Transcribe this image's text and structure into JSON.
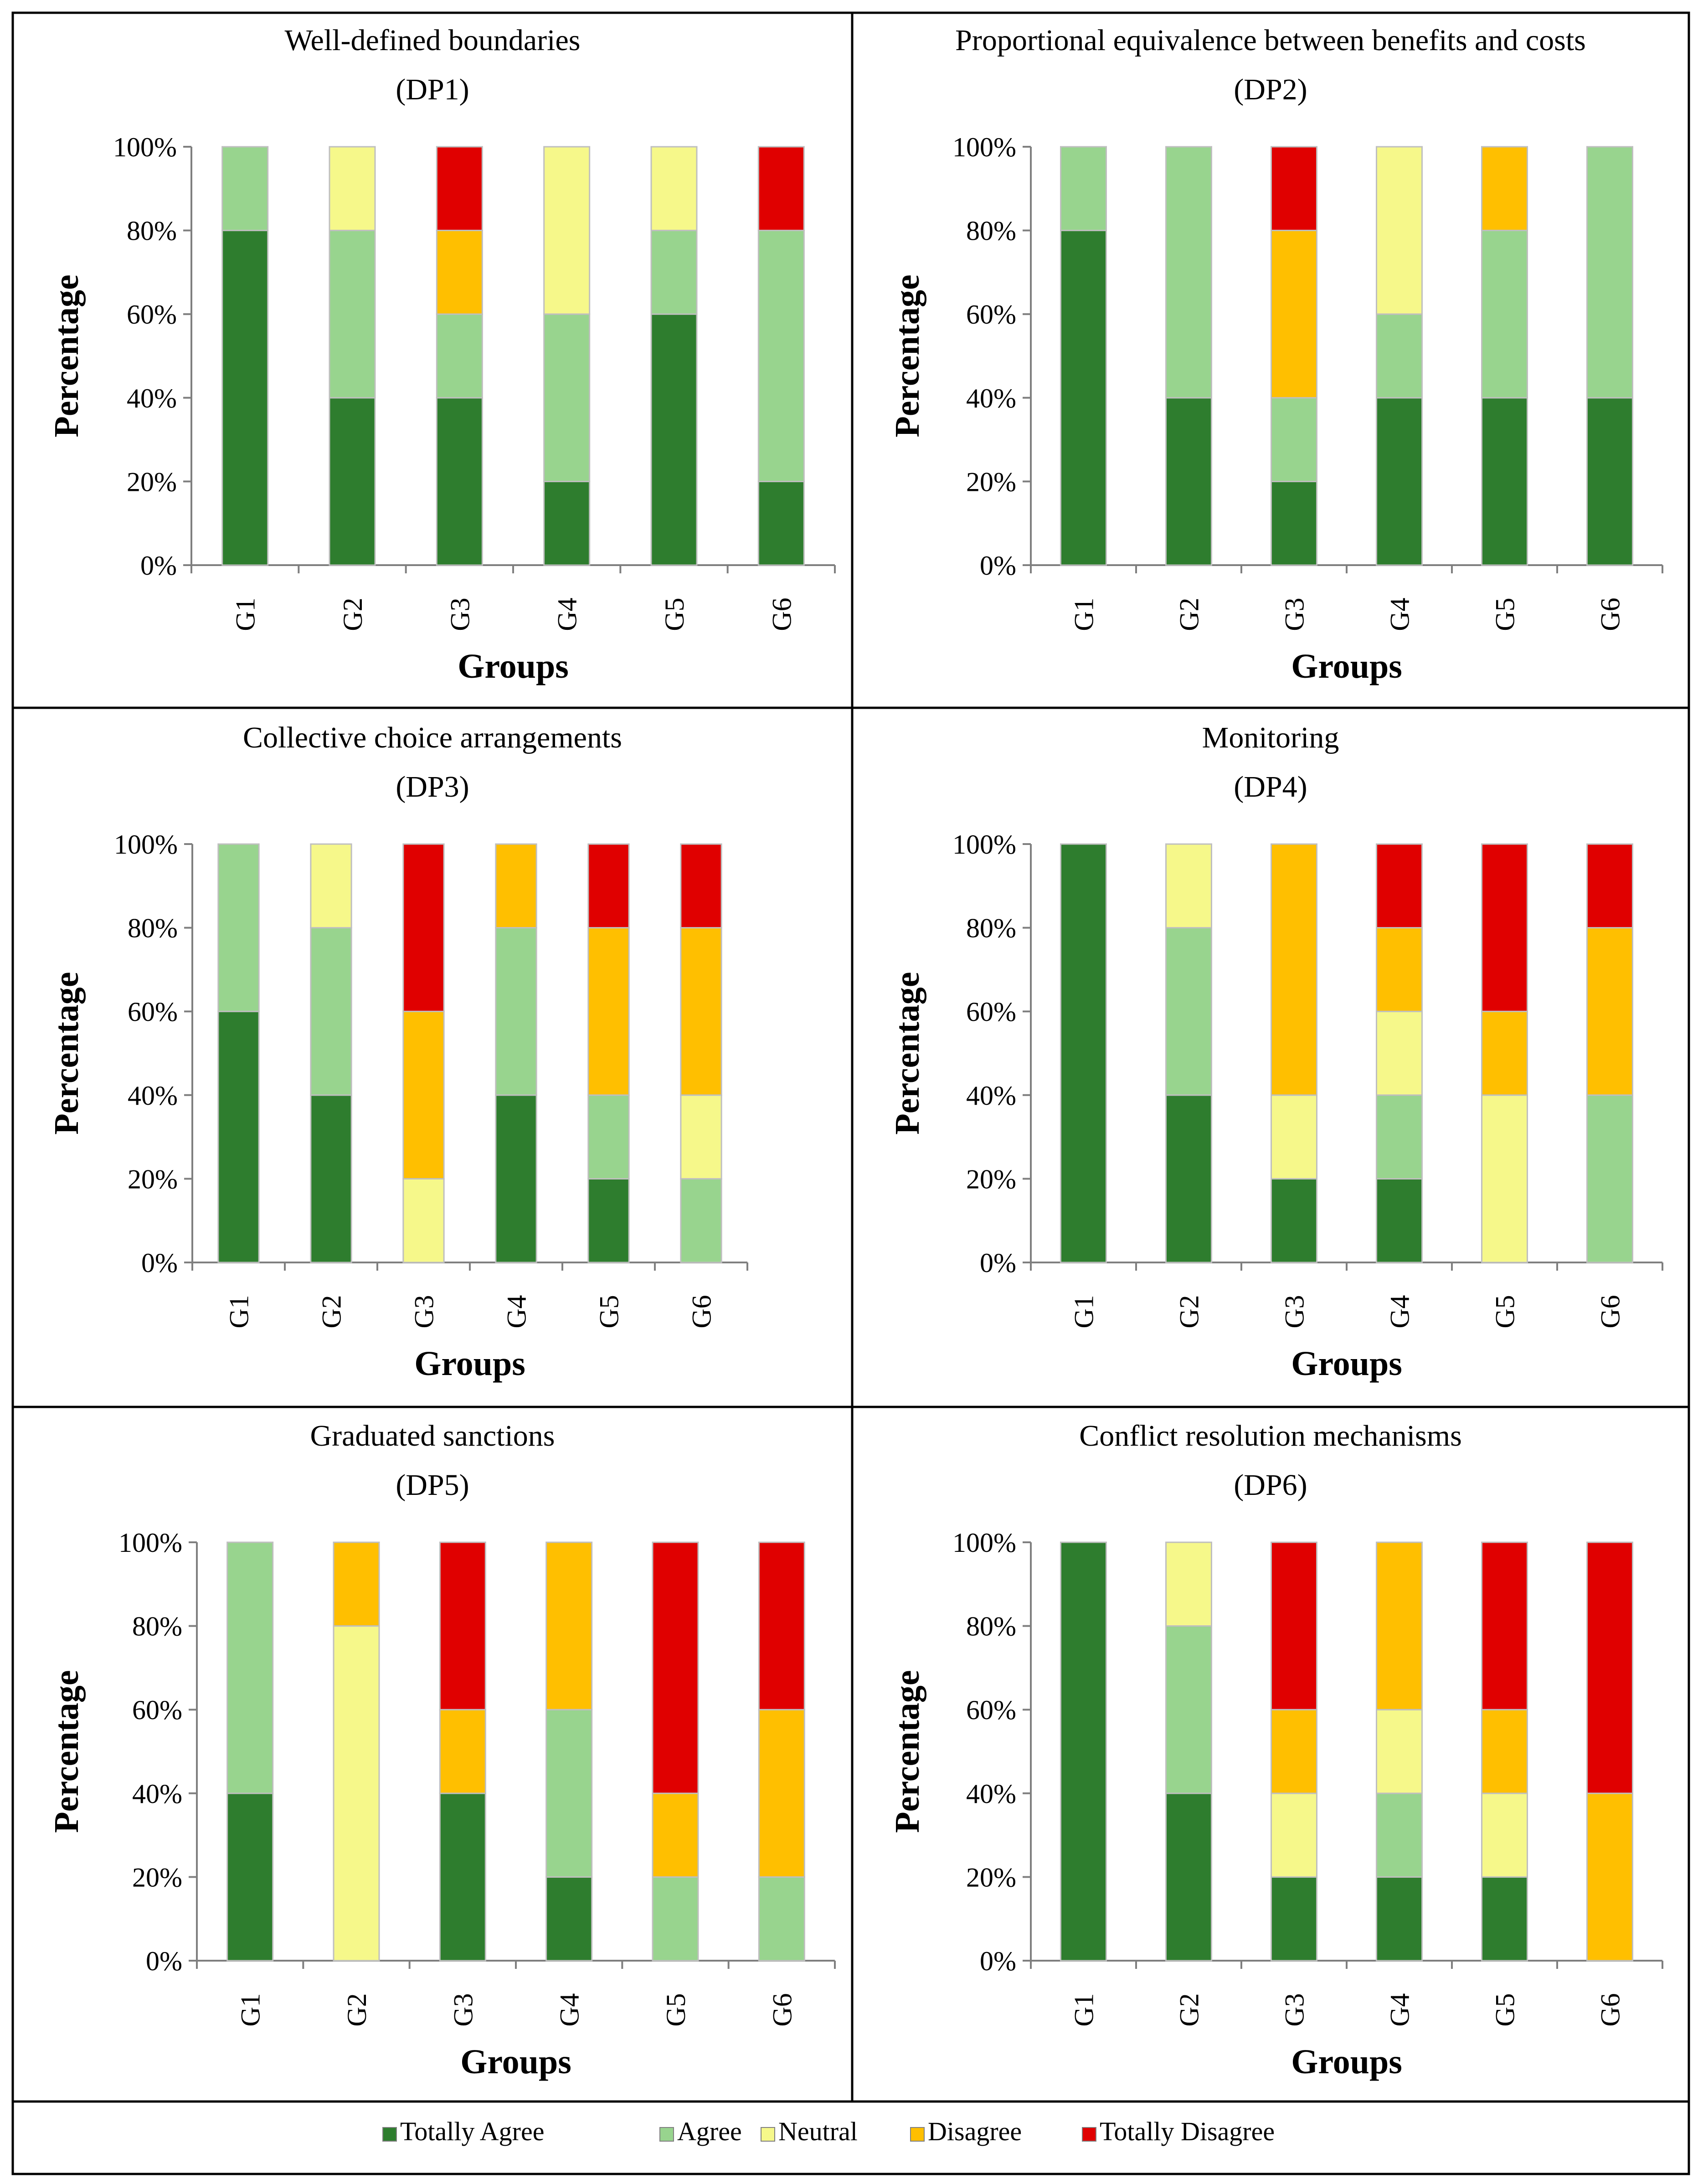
{
  "colors": {
    "Totally Agree": "#2e7d2e",
    "Agree": "#98d48e",
    "Neutral": "#f6f88a",
    "Disagree": "#ffbf00",
    "Totally Disagree": "#e00000"
  },
  "legend": [
    "Totally Agree",
    "Agree",
    "Neutral",
    "Disagree",
    "Totally Disagree"
  ],
  "chart_data": [
    {
      "type": "stacked-bar",
      "title": "Well-defined boundaries",
      "subtitle": "(DP1)",
      "xlabel": "Groups",
      "ylabel": "Percentage",
      "ylim": [
        0,
        100
      ],
      "yticks": [
        "0%",
        "20%",
        "40%",
        "60%",
        "80%",
        "100%"
      ],
      "categories": [
        "G1",
        "G2",
        "G3",
        "G4",
        "G5",
        "G6"
      ],
      "series": [
        {
          "name": "Totally Agree",
          "values": [
            80,
            40,
            40,
            20,
            60,
            20
          ]
        },
        {
          "name": "Agree",
          "values": [
            20,
            40,
            20,
            40,
            20,
            60
          ]
        },
        {
          "name": "Neutral",
          "values": [
            0,
            20,
            0,
            40,
            20,
            0
          ]
        },
        {
          "name": "Disagree",
          "values": [
            0,
            0,
            20,
            0,
            0,
            0
          ]
        },
        {
          "name": "Totally Disagree",
          "values": [
            0,
            0,
            20,
            0,
            0,
            20
          ]
        }
      ]
    },
    {
      "type": "stacked-bar",
      "title": "Proportional equivalence between benefits and costs",
      "subtitle": "(DP2)",
      "xlabel": "Groups",
      "ylabel": "Percentage",
      "ylim": [
        0,
        100
      ],
      "yticks": [
        "0%",
        "20%",
        "40%",
        "60%",
        "80%",
        "100%"
      ],
      "categories": [
        "G1",
        "G2",
        "G3",
        "G4",
        "G5",
        "G6"
      ],
      "series": [
        {
          "name": "Totally Agree",
          "values": [
            80,
            40,
            20,
            40,
            40,
            40
          ]
        },
        {
          "name": "Agree",
          "values": [
            20,
            60,
            20,
            20,
            40,
            60
          ]
        },
        {
          "name": "Neutral",
          "values": [
            0,
            0,
            0,
            40,
            0,
            0
          ]
        },
        {
          "name": "Disagree",
          "values": [
            0,
            0,
            40,
            0,
            20,
            0
          ]
        },
        {
          "name": "Totally Disagree",
          "values": [
            0,
            0,
            20,
            0,
            0,
            0
          ]
        }
      ]
    },
    {
      "type": "stacked-bar",
      "title": "Collective choice arrangements",
      "subtitle": "(DP3)",
      "xlabel": "Groups",
      "ylabel": "Percentage",
      "ylim": [
        0,
        100
      ],
      "yticks": [
        "0%",
        "20%",
        "40%",
        "60%",
        "80%",
        "100%"
      ],
      "categories": [
        "G1",
        "G2",
        "G3",
        "G4",
        "G5",
        "G6"
      ],
      "series": [
        {
          "name": "Totally Agree",
          "values": [
            60,
            40,
            0,
            40,
            20,
            0
          ]
        },
        {
          "name": "Agree",
          "values": [
            40,
            40,
            0,
            40,
            20,
            20
          ]
        },
        {
          "name": "Neutral",
          "values": [
            0,
            20,
            20,
            0,
            0,
            20
          ]
        },
        {
          "name": "Disagree",
          "values": [
            0,
            0,
            40,
            20,
            40,
            40
          ]
        },
        {
          "name": "Totally Disagree",
          "values": [
            0,
            0,
            40,
            0,
            20,
            20
          ]
        }
      ]
    },
    {
      "type": "stacked-bar",
      "title": "Monitoring",
      "subtitle": "(DP4)",
      "xlabel": "Groups",
      "ylabel": "Percentage",
      "ylim": [
        0,
        100
      ],
      "yticks": [
        "0%",
        "20%",
        "40%",
        "60%",
        "80%",
        "100%"
      ],
      "categories": [
        "G1",
        "G2",
        "G3",
        "G4",
        "G5",
        "G6"
      ],
      "series": [
        {
          "name": "Totally Agree",
          "values": [
            100,
            40,
            20,
            20,
            0,
            0
          ]
        },
        {
          "name": "Agree",
          "values": [
            0,
            40,
            0,
            20,
            0,
            40
          ]
        },
        {
          "name": "Neutral",
          "values": [
            0,
            20,
            20,
            20,
            40,
            0
          ]
        },
        {
          "name": "Disagree",
          "values": [
            0,
            0,
            60,
            20,
            20,
            40
          ]
        },
        {
          "name": "Totally Disagree",
          "values": [
            0,
            0,
            0,
            20,
            40,
            20
          ]
        }
      ]
    },
    {
      "type": "stacked-bar",
      "title": "Graduated sanctions",
      "subtitle": "(DP5)",
      "xlabel": "Groups",
      "ylabel": "Percentage",
      "ylim": [
        0,
        100
      ],
      "yticks": [
        "0%",
        "20%",
        "40%",
        "60%",
        "80%",
        "100%"
      ],
      "categories": [
        "G1",
        "G2",
        "G3",
        "G4",
        "G5",
        "G6"
      ],
      "series": [
        {
          "name": "Totally Agree",
          "values": [
            40,
            0,
            40,
            20,
            0,
            0
          ]
        },
        {
          "name": "Agree",
          "values": [
            60,
            0,
            0,
            40,
            20,
            20
          ]
        },
        {
          "name": "Neutral",
          "values": [
            0,
            80,
            0,
            0,
            0,
            0
          ]
        },
        {
          "name": "Disagree",
          "values": [
            0,
            20,
            20,
            40,
            20,
            40
          ]
        },
        {
          "name": "Totally Disagree",
          "values": [
            0,
            0,
            40,
            0,
            60,
            40
          ]
        }
      ]
    },
    {
      "type": "stacked-bar",
      "title": "Conflict resolution mechanisms",
      "subtitle": "(DP6)",
      "xlabel": "Groups",
      "ylabel": "Percentage",
      "ylim": [
        0,
        100
      ],
      "yticks": [
        "0%",
        "20%",
        "40%",
        "60%",
        "80%",
        "100%"
      ],
      "categories": [
        "G1",
        "G2",
        "G3",
        "G4",
        "G5",
        "G6"
      ],
      "series": [
        {
          "name": "Totally Agree",
          "values": [
            100,
            40,
            20,
            20,
            20,
            0
          ]
        },
        {
          "name": "Agree",
          "values": [
            0,
            40,
            0,
            20,
            0,
            0
          ]
        },
        {
          "name": "Neutral",
          "values": [
            0,
            20,
            20,
            20,
            20,
            0
          ]
        },
        {
          "name": "Disagree",
          "values": [
            0,
            0,
            20,
            40,
            20,
            40
          ]
        },
        {
          "name": "Totally Disagree",
          "values": [
            0,
            0,
            40,
            0,
            40,
            60
          ]
        }
      ]
    }
  ]
}
